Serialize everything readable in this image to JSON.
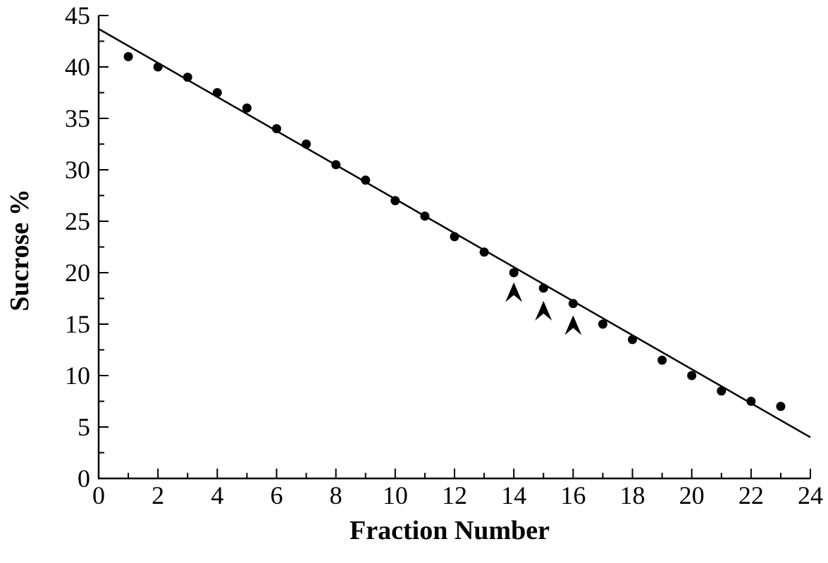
{
  "chart_data": {
    "type": "scatter",
    "title": "",
    "xlabel": "Fraction Number",
    "ylabel": "Sucrose %",
    "xlim": [
      0,
      24
    ],
    "ylim": [
      0,
      45
    ],
    "x_ticks": [
      0,
      2,
      4,
      6,
      8,
      10,
      12,
      14,
      16,
      18,
      20,
      22,
      24
    ],
    "y_ticks": [
      0,
      5,
      10,
      15,
      20,
      25,
      30,
      35,
      40,
      45
    ],
    "grid": false,
    "legend": "none",
    "series": [
      {
        "x": [
          1,
          2,
          3,
          4,
          5,
          6,
          7,
          8,
          9,
          10,
          11,
          12,
          13,
          14,
          15,
          16,
          17,
          18,
          19,
          20,
          21,
          22,
          23
        ],
        "y": [
          41.0,
          40.0,
          39.0,
          37.5,
          36.0,
          34.0,
          32.5,
          30.5,
          29.0,
          27.0,
          25.5,
          23.5,
          22.0,
          20.0,
          18.5,
          17.0,
          15.0,
          13.5,
          11.5,
          10.0,
          8.5,
          7.5,
          7.0
        ]
      }
    ],
    "fit_line": {
      "x": [
        0,
        24
      ],
      "y": [
        43.7,
        4.0
      ]
    },
    "arrow_markers": [
      {
        "x": 14,
        "y": 18.1
      },
      {
        "x": 15,
        "y": 16.3
      },
      {
        "x": 16,
        "y": 14.9
      }
    ],
    "colors": {
      "axis": "#000000",
      "points": "#000000",
      "line": "#000000"
    }
  }
}
